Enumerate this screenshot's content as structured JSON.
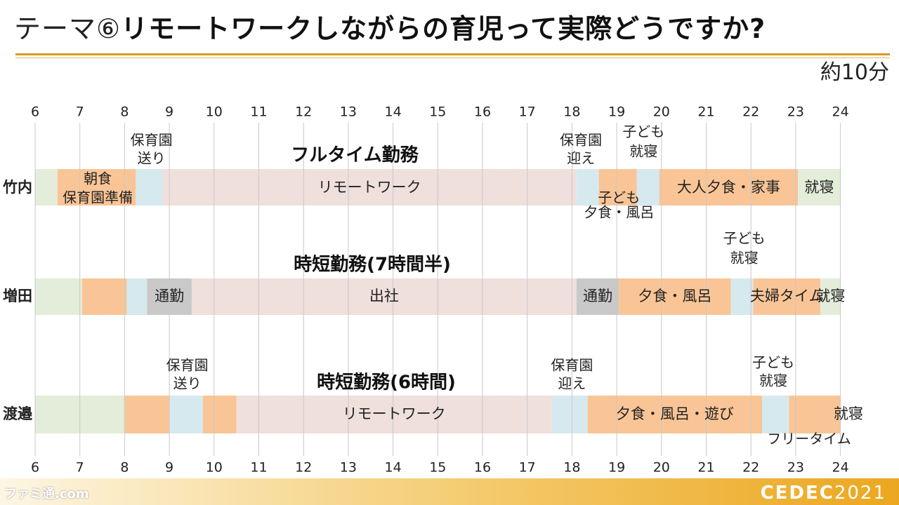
{
  "title": {
    "prefix": "テーマ⑥",
    "main": "リモートワークしながらの育児って実際どうですか?"
  },
  "duration": "約10分",
  "branding": {
    "logo": "CEDEC",
    "year": "2021",
    "watermark": "ファミ通.com"
  },
  "colors": {
    "work": "#efe0dc",
    "childcare": "#fac596",
    "transfer": "#d6e9ef",
    "commute": "#c9c9c9",
    "sleep": "#e3edd9",
    "gridline": "#c8c8c8",
    "accent": "#d89a22"
  },
  "hours": [
    "6",
    "7",
    "8",
    "9",
    "10",
    "11",
    "12",
    "13",
    "14",
    "15",
    "16",
    "17",
    "18",
    "19",
    "20",
    "21",
    "22",
    "23",
    "24"
  ],
  "schedules": [
    {
      "name": "竹内",
      "work_style": "フルタイム勤務",
      "segments": [
        {
          "start": 6.0,
          "end": 6.5,
          "kind": "sleep",
          "label": ""
        },
        {
          "start": 6.5,
          "end": 8.25,
          "kind": "childcare",
          "label": ""
        },
        {
          "start": 8.25,
          "end": 8.85,
          "kind": "transfer",
          "label": ""
        },
        {
          "start": 8.85,
          "end": 18.1,
          "kind": "work",
          "label": "リモートワーク"
        },
        {
          "start": 18.1,
          "end": 18.6,
          "kind": "transfer",
          "label": ""
        },
        {
          "start": 18.6,
          "end": 19.45,
          "kind": "childcare",
          "label": ""
        },
        {
          "start": 19.45,
          "end": 19.95,
          "kind": "transfer",
          "label": ""
        },
        {
          "start": 19.95,
          "end": 23.05,
          "kind": "childcare",
          "label": "大人夕食・家事"
        },
        {
          "start": 23.05,
          "end": 24.0,
          "kind": "sleep",
          "label": "就寝"
        }
      ],
      "annotations": [
        {
          "text": "保育園",
          "hour": 8.6,
          "pos": "top2"
        },
        {
          "text": "送り",
          "hour": 8.6,
          "pos": "top1"
        },
        {
          "text": "保育園",
          "hour": 18.2,
          "pos": "top2"
        },
        {
          "text": "迎え",
          "hour": 18.2,
          "pos": "top1"
        },
        {
          "text": "子ども",
          "hour": 19.6,
          "pos": "top3"
        },
        {
          "text": "就寝",
          "hour": 19.6,
          "pos": "top2"
        },
        {
          "text": "朝食",
          "hour": 7.4,
          "pos": "mid_up"
        },
        {
          "text": "保育園準備",
          "hour": 7.4,
          "pos": "mid_down"
        },
        {
          "text": "子ども",
          "hour": 19.05,
          "pos": "mid_down"
        },
        {
          "text": "夕食・風呂",
          "hour": 19.05,
          "pos": "below"
        }
      ]
    },
    {
      "name": "増田",
      "work_style": "時短勤務(7時間半)",
      "segments": [
        {
          "start": 6.0,
          "end": 7.05,
          "kind": "sleep",
          "label": ""
        },
        {
          "start": 7.05,
          "end": 8.05,
          "kind": "childcare",
          "label": ""
        },
        {
          "start": 8.05,
          "end": 8.5,
          "kind": "transfer",
          "label": ""
        },
        {
          "start": 8.5,
          "end": 9.5,
          "kind": "commute",
          "label": "通勤"
        },
        {
          "start": 9.5,
          "end": 18.1,
          "kind": "work",
          "label": "出社"
        },
        {
          "start": 18.1,
          "end": 19.05,
          "kind": "commute",
          "label": "通勤"
        },
        {
          "start": 19.05,
          "end": 21.55,
          "kind": "childcare",
          "label": "夕食・風呂"
        },
        {
          "start": 21.55,
          "end": 22.05,
          "kind": "transfer",
          "label": ""
        },
        {
          "start": 22.05,
          "end": 23.55,
          "kind": "childcare",
          "label": "夫婦タイム"
        },
        {
          "start": 23.55,
          "end": 24.0,
          "kind": "sleep",
          "label": "就寝"
        }
      ],
      "annotations": [
        {
          "text": "子ども",
          "hour": 21.85,
          "pos": "top3"
        },
        {
          "text": "就寝",
          "hour": 21.85,
          "pos": "top2"
        }
      ]
    },
    {
      "name": "渡邉",
      "work_style": "時短勤務(6時間)",
      "segments": [
        {
          "start": 6.0,
          "end": 8.0,
          "kind": "sleep",
          "label": ""
        },
        {
          "start": 8.0,
          "end": 9.0,
          "kind": "childcare",
          "label": ""
        },
        {
          "start": 9.0,
          "end": 9.75,
          "kind": "transfer",
          "label": ""
        },
        {
          "start": 9.75,
          "end": 10.5,
          "kind": "childcare",
          "label": ""
        },
        {
          "start": 10.5,
          "end": 17.55,
          "kind": "work",
          "label": "リモートワーク"
        },
        {
          "start": 17.55,
          "end": 18.35,
          "kind": "transfer",
          "label": ""
        },
        {
          "start": 18.35,
          "end": 22.25,
          "kind": "childcare",
          "label": "夕食・風呂・遊び"
        },
        {
          "start": 22.25,
          "end": 22.85,
          "kind": "transfer",
          "label": ""
        },
        {
          "start": 22.85,
          "end": 24.0,
          "kind": "childcare",
          "label": ""
        },
        {
          "start": 24.0,
          "end": 24.0,
          "kind": "sleep",
          "label": "就寝"
        }
      ],
      "annotations": [
        {
          "text": "保育園",
          "hour": 9.4,
          "pos": "top2"
        },
        {
          "text": "送り",
          "hour": 9.4,
          "pos": "top1"
        },
        {
          "text": "保育園",
          "hour": 18.0,
          "pos": "top2"
        },
        {
          "text": "迎え",
          "hour": 18.0,
          "pos": "top1"
        },
        {
          "text": "子ども",
          "hour": 22.5,
          "pos": "top3"
        },
        {
          "text": "就寝",
          "hour": 22.5,
          "pos": "top2"
        },
        {
          "text": "フリータイム",
          "hour": 23.3,
          "pos": "below"
        }
      ]
    }
  ]
}
